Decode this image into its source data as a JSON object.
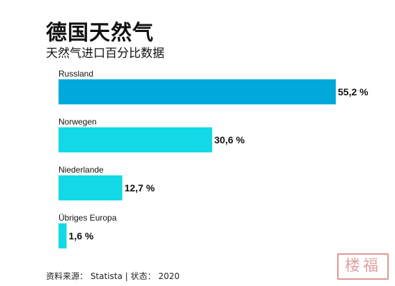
{
  "title": "德国天然气",
  "subtitle": "天然气进口百分比数据",
  "source": "资料来源： Statista | 状态： 2020",
  "stamp_text": "楼福",
  "colors": {
    "primary_bar": "#00A9D9",
    "secondary_bar": "#12D9E5",
    "text": "#111111"
  },
  "chart_data": {
    "type": "bar",
    "orientation": "horizontal",
    "title": "德国天然气",
    "subtitle": "天然气进口百分比数据",
    "xlim": [
      0,
      55.2
    ],
    "grid": false,
    "categories": [
      "Russland",
      "Norwegen",
      "Niederlande",
      "Übriges Europa"
    ],
    "values": [
      55.2,
      30.6,
      12.7,
      1.6
    ],
    "value_labels": [
      "55,2 %",
      "30,6 %",
      "12,7 %",
      "1,6 %"
    ]
  }
}
